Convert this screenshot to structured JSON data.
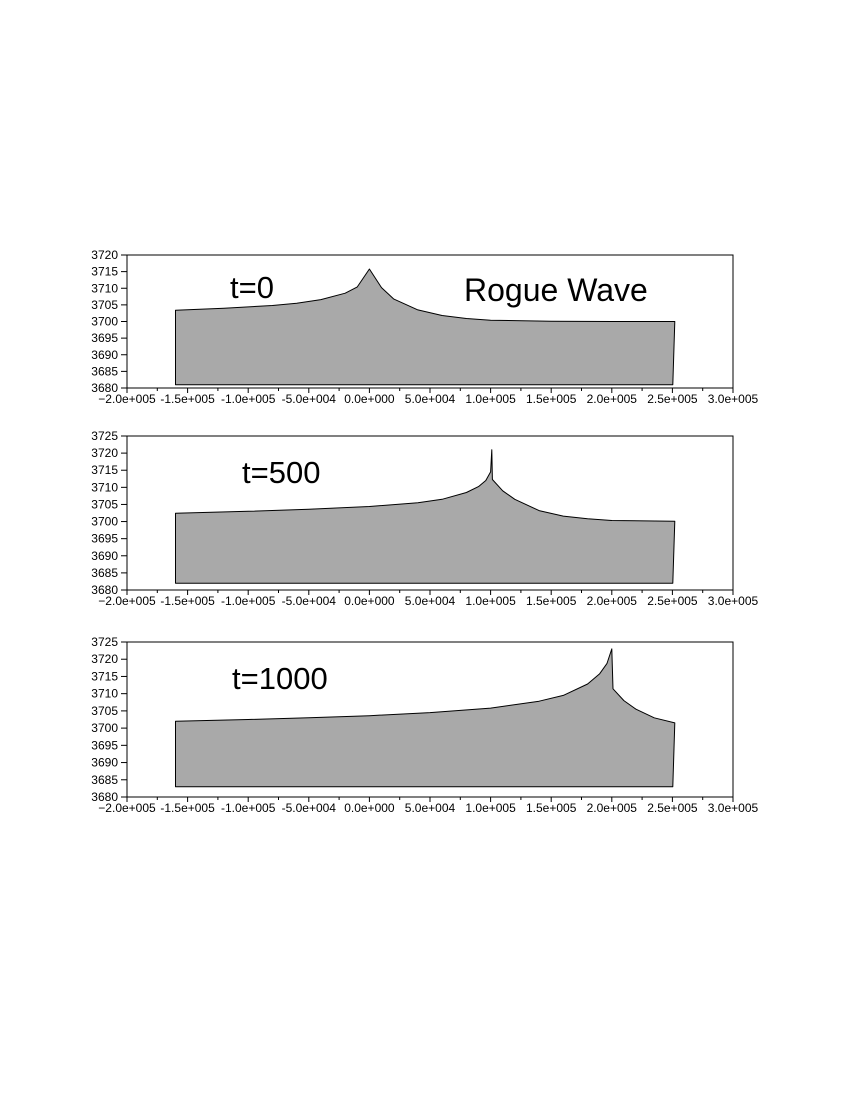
{
  "figure": {
    "title": "Rogue Wave"
  },
  "chart_data": [
    {
      "type": "area",
      "annotation": "t=0",
      "xlim": [
        -200000,
        300000
      ],
      "ylim": [
        3680,
        3720
      ],
      "x_ticks": [
        -200000,
        -150000,
        -100000,
        -50000,
        0,
        50000,
        100000,
        150000,
        200000,
        250000,
        300000
      ],
      "x_tick_labels": [
        "−2.0e+005",
        "-1.5e+005",
        "-1.0e+005",
        "-5.0e+004",
        "0.0e+000",
        "5.0e+004",
        "1.0e+005",
        "1.5e+005",
        "2.0e+005",
        "2.5e+005",
        "3.0e+005"
      ],
      "y_ticks": [
        3680,
        3685,
        3690,
        3695,
        3700,
        3705,
        3710,
        3715,
        3720
      ],
      "y_tick_labels": [
        "3680",
        "3685",
        "3690",
        "3695",
        "3700",
        "3705",
        "3710",
        "3715",
        "3720"
      ],
      "baseline": 3681,
      "series": [
        {
          "x": [
            -160000,
            -120000,
            -80000,
            -60000,
            -40000,
            -20000,
            -10000,
            0,
            10000,
            20000,
            40000,
            60000,
            80000,
            100000,
            150000,
            200000,
            252000
          ],
          "y": [
            3703.4,
            3704.0,
            3704.8,
            3705.5,
            3706.6,
            3708.5,
            3710.4,
            3715.8,
            3710.2,
            3706.8,
            3703.5,
            3701.8,
            3700.9,
            3700.4,
            3700.1,
            3700.0,
            3700.0
          ]
        }
      ]
    },
    {
      "type": "area",
      "annotation": "t=500",
      "xlim": [
        -200000,
        300000
      ],
      "ylim": [
        3680,
        3725
      ],
      "x_ticks": [
        -200000,
        -150000,
        -100000,
        -50000,
        0,
        50000,
        100000,
        150000,
        200000,
        250000,
        300000
      ],
      "x_tick_labels": [
        "−2.0e+005",
        "-1.5e+005",
        "-1.0e+005",
        "-5.0e+004",
        "0.0e+000",
        "5.0e+004",
        "1.0e+005",
        "1.5e+005",
        "2.0e+005",
        "2.5e+005",
        "3.0e+005"
      ],
      "y_ticks": [
        3680,
        3685,
        3690,
        3695,
        3700,
        3705,
        3710,
        3715,
        3720,
        3725
      ],
      "y_tick_labels": [
        "3680",
        "3685",
        "3690",
        "3695",
        "3700",
        "3705",
        "3710",
        "3715",
        "3720",
        "3725"
      ],
      "baseline": 3682,
      "series": [
        {
          "x": [
            -160000,
            -100000,
            -50000,
            0,
            40000,
            60000,
            80000,
            90000,
            96000,
            100000,
            101000,
            101500,
            110000,
            120000,
            140000,
            160000,
            180000,
            200000,
            252000
          ],
          "y": [
            3702.4,
            3703.0,
            3703.6,
            3704.4,
            3705.5,
            3706.5,
            3708.5,
            3710.2,
            3712.0,
            3714.5,
            3721.0,
            3712.3,
            3709.0,
            3706.5,
            3703.2,
            3701.6,
            3700.8,
            3700.3,
            3700.1
          ]
        }
      ]
    },
    {
      "type": "area",
      "annotation": "t=1000",
      "xlim": [
        -200000,
        300000
      ],
      "ylim": [
        3680,
        3725
      ],
      "x_ticks": [
        -200000,
        -150000,
        -100000,
        -50000,
        0,
        50000,
        100000,
        150000,
        200000,
        250000,
        300000
      ],
      "x_tick_labels": [
        "−2.0e+005",
        "-1.5e+005",
        "-1.0e+005",
        "-5.0e+004",
        "0.0e+000",
        "5.0e+004",
        "1.0e+005",
        "1.5e+005",
        "2.0e+005",
        "2.5e+005",
        "3.0e+005"
      ],
      "y_ticks": [
        3680,
        3685,
        3690,
        3695,
        3700,
        3705,
        3710,
        3715,
        3720,
        3725
      ],
      "y_tick_labels": [
        "3680",
        "3685",
        "3690",
        "3695",
        "3700",
        "3705",
        "3710",
        "3715",
        "3720",
        "3725"
      ],
      "baseline": 3683,
      "series": [
        {
          "x": [
            -160000,
            -100000,
            -50000,
            0,
            50000,
            100000,
            140000,
            160000,
            180000,
            190000,
            196000,
            200000,
            201000,
            210000,
            220000,
            235000,
            252000
          ],
          "y": [
            3702.0,
            3702.5,
            3703.0,
            3703.6,
            3704.5,
            3705.8,
            3707.8,
            3709.5,
            3712.8,
            3715.8,
            3718.8,
            3723.0,
            3711.4,
            3708.0,
            3705.5,
            3703.0,
            3701.5
          ]
        }
      ]
    }
  ],
  "colors": {
    "fill": "#a9a9a9",
    "line": "#000000",
    "axes": "#000000",
    "background": "#ffffff"
  }
}
